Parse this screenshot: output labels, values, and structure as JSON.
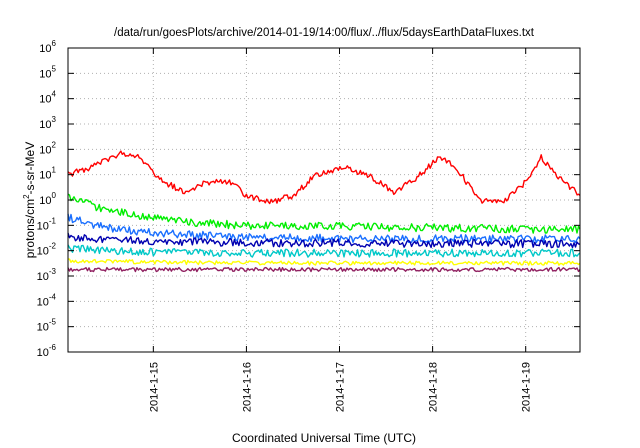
{
  "chart_data": {
    "type": "line",
    "title": "/data/run/goesPlots/archive/2014-01-19/14:00/flux/../flux/5daysEarthDataFluxes.txt",
    "xlabel": "Coordinated Universal Time (UTC)",
    "ylabel": {
      "base": "protons/cm",
      "sup": "2",
      "rest": "-s-sr-MeV"
    },
    "y_scale": "log",
    "ylim": [
      1e-06,
      1000000.0
    ],
    "y_ticks": [
      {
        "exp": "-6",
        "value": 1e-06
      },
      {
        "exp": "-5",
        "value": 1e-05
      },
      {
        "exp": "-4",
        "value": 0.0001
      },
      {
        "exp": "-3",
        "value": 0.001
      },
      {
        "exp": "-2",
        "value": 0.01
      },
      {
        "exp": "-1",
        "value": 0.1
      },
      {
        "exp": "0",
        "value": 1
      },
      {
        "exp": "1",
        "value": 10
      },
      {
        "exp": "2",
        "value": 100
      },
      {
        "exp": "3",
        "value": 1000
      },
      {
        "exp": "4",
        "value": 10000
      },
      {
        "exp": "5",
        "value": 100000
      },
      {
        "exp": "6",
        "value": 1000000
      }
    ],
    "xlim": [
      "2014-01-14 02:00",
      "2014-01-19 14:00"
    ],
    "x_ticks": [
      "2014-1-15",
      "2014-1-16",
      "2014-1-17",
      "2014-1-18",
      "2014-1-19"
    ],
    "grid": true,
    "series": [
      {
        "color": "#ff0000",
        "x": [
          "2014-01-14 02:00",
          "2014-01-14 08:00",
          "2014-01-14 12:00",
          "2014-01-14 16:00",
          "2014-01-14 20:00",
          "2014-01-15 02:00",
          "2014-01-15 08:00",
          "2014-01-15 14:00",
          "2014-01-15 20:00",
          "2014-01-16 00:00",
          "2014-01-16 06:00",
          "2014-01-16 12:00",
          "2014-01-16 18:00",
          "2014-01-17 02:00",
          "2014-01-17 08:00",
          "2014-01-17 14:00",
          "2014-01-17 20:00",
          "2014-01-18 02:00",
          "2014-01-18 06:00",
          "2014-01-18 12:00",
          "2014-01-18 18:00",
          "2014-01-19 00:00",
          "2014-01-19 04:00",
          "2014-01-19 08:00",
          "2014-01-19 14:00"
        ],
        "y": [
          10,
          20,
          40,
          70,
          60,
          6,
          2,
          5,
          5,
          1.5,
          0.8,
          1.5,
          10,
          20,
          8,
          2,
          8,
          50,
          20,
          1,
          0.8,
          5,
          50,
          10,
          1.5
        ]
      },
      {
        "color": "#00ee00",
        "x": [
          "2014-01-14 02:00",
          "2014-01-14 12:00",
          "2014-01-15 00:00",
          "2014-01-15 12:00",
          "2014-01-16 00:00",
          "2014-01-17 00:00",
          "2014-01-18 00:00",
          "2014-01-19 00:00",
          "2014-01-19 14:00"
        ],
        "y": [
          1.2,
          0.4,
          0.2,
          0.12,
          0.1,
          0.09,
          0.08,
          0.07,
          0.07
        ]
      },
      {
        "color": "#1a6fff",
        "x": [
          "2014-01-14 02:00",
          "2014-01-14 12:00",
          "2014-01-15 00:00",
          "2014-01-15 12:00",
          "2014-01-16 00:00",
          "2014-01-17 00:00",
          "2014-01-18 00:00",
          "2014-01-19 00:00",
          "2014-01-19 14:00"
        ],
        "y": [
          0.2,
          0.08,
          0.05,
          0.04,
          0.035,
          0.03,
          0.03,
          0.03,
          0.03
        ]
      },
      {
        "color": "#0000b0",
        "x": [
          "2014-01-14 02:00",
          "2014-01-14 12:00",
          "2014-01-15 00:00",
          "2014-01-16 00:00",
          "2014-01-17 00:00",
          "2014-01-18 00:00",
          "2014-01-19 00:00",
          "2014-01-19 14:00"
        ],
        "y": [
          0.035,
          0.028,
          0.024,
          0.021,
          0.02,
          0.019,
          0.019,
          0.018
        ]
      },
      {
        "color": "#00c8c8",
        "x": [
          "2014-01-14 02:00",
          "2014-01-15 00:00",
          "2014-01-16 00:00",
          "2014-01-17 00:00",
          "2014-01-18 00:00",
          "2014-01-19 00:00",
          "2014-01-19 14:00"
        ],
        "y": [
          0.012,
          0.009,
          0.008,
          0.008,
          0.008,
          0.008,
          0.008
        ]
      },
      {
        "color": "#ffff00",
        "x": [
          "2014-01-14 02:00",
          "2014-01-15 00:00",
          "2014-01-16 00:00",
          "2014-01-17 00:00",
          "2014-01-18 00:00",
          "2014-01-19 00:00",
          "2014-01-19 14:00"
        ],
        "y": [
          0.004,
          0.0035,
          0.0033,
          0.0032,
          0.0032,
          0.0032,
          0.0032
        ]
      },
      {
        "color": "#902060",
        "x": [
          "2014-01-14 02:00",
          "2014-01-15 00:00",
          "2014-01-16 00:00",
          "2014-01-17 00:00",
          "2014-01-18 00:00",
          "2014-01-19 00:00",
          "2014-01-19 14:00"
        ],
        "y": [
          0.0018,
          0.0018,
          0.0018,
          0.0018,
          0.0018,
          0.0018,
          0.0018
        ]
      }
    ]
  }
}
